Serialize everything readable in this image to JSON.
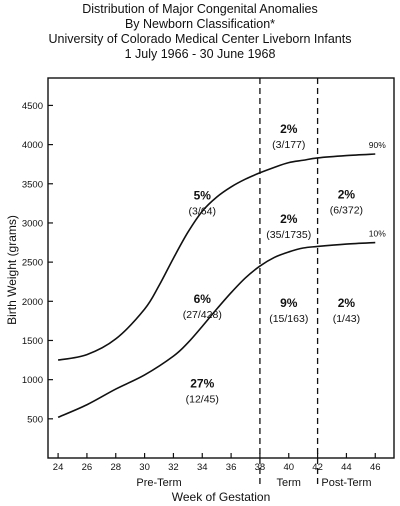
{
  "chart_data": {
    "type": "line",
    "title_lines": [
      "Distribution of Major Congenital Anomalies",
      "By Newborn Classification*",
      "University of Colorado Medical Center Liveborn Infants",
      "1 July 1966 - 30 June 1968"
    ],
    "xlabel": "Week of Gestation",
    "ylabel": "Birth Weight (grams)",
    "xlim": [
      23.3,
      47.3
    ],
    "ylim": [
      0,
      4850
    ],
    "x_ticks": [
      24,
      26,
      28,
      30,
      32,
      34,
      36,
      38,
      40,
      42,
      44,
      46
    ],
    "y_ticks": [
      500,
      1000,
      1500,
      2000,
      2500,
      3000,
      3500,
      4000,
      4500
    ],
    "dividers": [
      38,
      42
    ],
    "term_labels": [
      {
        "text": "Pre-Term",
        "x": 31
      },
      {
        "text": "Term",
        "x": 40
      },
      {
        "text": "Post-Term",
        "x": 44
      }
    ],
    "series": [
      {
        "name": "90%",
        "x": [
          24,
          26,
          28,
          30,
          31,
          32,
          33,
          34,
          35,
          36,
          37,
          38,
          39,
          40,
          41,
          42,
          44,
          46
        ],
        "y": [
          1250,
          1320,
          1520,
          1900,
          2200,
          2550,
          2880,
          3150,
          3330,
          3460,
          3560,
          3640,
          3710,
          3770,
          3800,
          3830,
          3860,
          3880
        ]
      },
      {
        "name": "10%",
        "x": [
          24,
          26,
          28,
          30,
          32,
          33,
          34,
          35,
          36,
          37,
          38,
          39,
          40,
          41,
          42,
          44,
          46
        ],
        "y": [
          520,
          680,
          880,
          1060,
          1300,
          1470,
          1680,
          1900,
          2110,
          2300,
          2450,
          2560,
          2630,
          2680,
          2700,
          2730,
          2750
        ]
      }
    ],
    "annotations": [
      {
        "pct": "5%",
        "frac": "(3/64)",
        "x": 34,
        "y": 3300
      },
      {
        "pct": "2%",
        "frac": "(3/177)",
        "x": 40,
        "y": 4150
      },
      {
        "pct": "2%",
        "frac": "(35/1735)",
        "x": 40,
        "y": 3000
      },
      {
        "pct": "2%",
        "frac": "(6/372)",
        "x": 44,
        "y": 3310
      },
      {
        "pct": "6%",
        "frac": "(27/428)",
        "x": 34,
        "y": 1980
      },
      {
        "pct": "9%",
        "frac": "(15/163)",
        "x": 40,
        "y": 1930
      },
      {
        "pct": "2%",
        "frac": "(1/43)",
        "x": 44,
        "y": 1930
      },
      {
        "pct": "27%",
        "frac": "(12/45)",
        "x": 34,
        "y": 900
      }
    ]
  }
}
